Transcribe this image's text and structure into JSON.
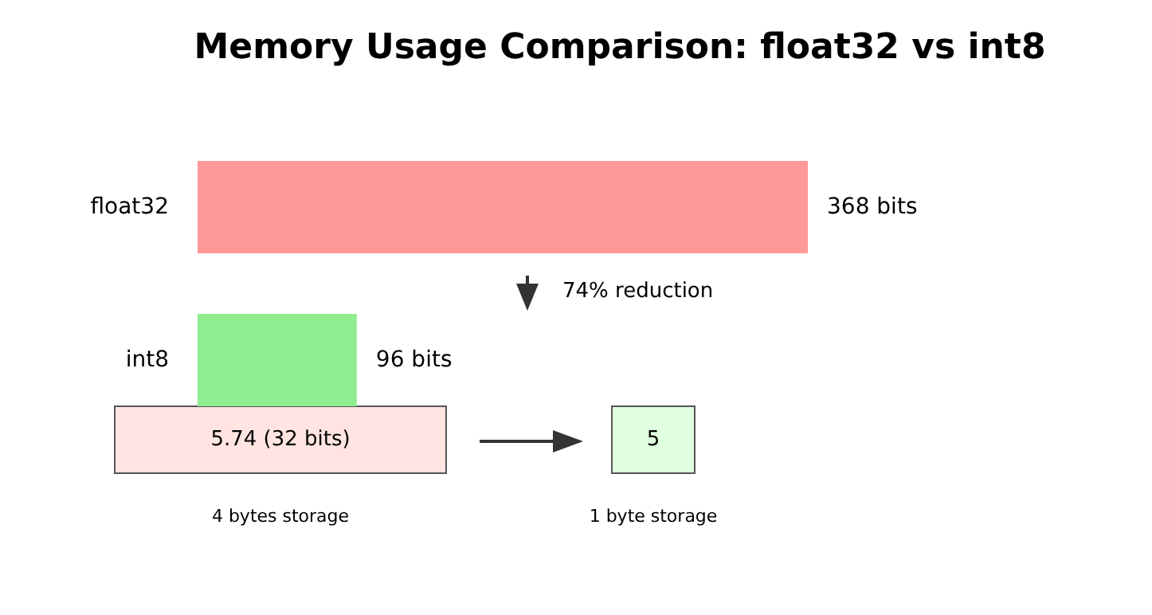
{
  "chart_data": {
    "type": "bar",
    "orientation": "horizontal",
    "title": "Memory Usage Comparison: float32 vs int8",
    "categories": [
      "float32",
      "int8"
    ],
    "values": [
      368,
      96
    ],
    "colors": [
      "#ff9999",
      "#90ee90"
    ],
    "value_labels": [
      "368 bits",
      "96 bits"
    ],
    "annotations": [
      "74% reduction",
      "5.74 (32 bits)",
      "5",
      "4 bytes storage",
      "1 byte storage"
    ]
  }
}
